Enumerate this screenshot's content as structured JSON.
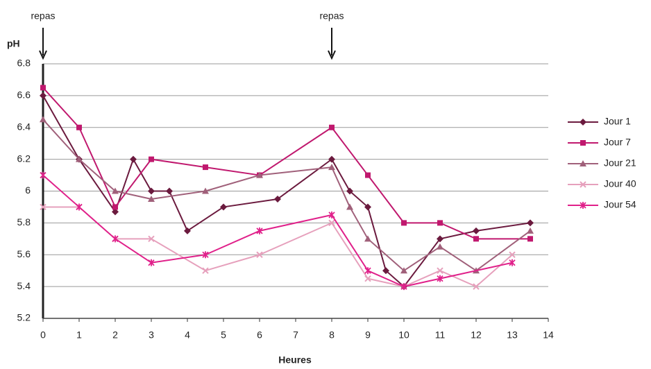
{
  "chart_data": {
    "type": "line",
    "y_label": "pH",
    "x_label": "Heures",
    "xlim": [
      0,
      14
    ],
    "xticks": [
      0,
      1,
      2,
      3,
      4,
      5,
      6,
      7,
      8,
      9,
      10,
      11,
      12,
      13,
      14
    ],
    "ylim": [
      5.2,
      6.8
    ],
    "yticks": [
      5.2,
      5.4,
      5.6,
      5.8,
      6,
      6.2,
      6.4,
      6.6,
      6.8
    ],
    "grid": true,
    "legend": "right",
    "annotations": [
      {
        "text": "repas",
        "x": 0
      },
      {
        "text": "repas",
        "x": 8
      }
    ],
    "series": [
      {
        "name": "Jour 1",
        "color": "#6b1a3e",
        "marker": "diamond",
        "x": [
          0,
          1,
          2,
          2.5,
          3,
          3.5,
          4,
          5,
          6.5,
          8,
          8.5,
          9,
          9.5,
          10,
          11,
          12,
          13.5
        ],
        "values": [
          6.6,
          6.2,
          5.87,
          6.2,
          6.0,
          6.0,
          5.75,
          5.9,
          5.95,
          6.2,
          6.0,
          5.9,
          5.5,
          5.4,
          5.7,
          5.75,
          5.8
        ]
      },
      {
        "name": "Jour 7",
        "color": "#c0186e",
        "marker": "square",
        "x": [
          0,
          1,
          2,
          3,
          4.5,
          6,
          8,
          9,
          10,
          11,
          12,
          13.5
        ],
        "values": [
          6.65,
          6.4,
          5.9,
          6.2,
          6.15,
          6.1,
          6.4,
          6.1,
          5.8,
          5.8,
          5.7,
          5.7
        ]
      },
      {
        "name": "Jour 21",
        "color": "#a0607a",
        "marker": "triangle",
        "x": [
          0,
          1,
          2,
          3,
          4.5,
          6,
          8,
          8.5,
          9,
          10,
          11,
          12,
          13.5
        ],
        "values": [
          6.45,
          6.2,
          6.0,
          5.95,
          6.0,
          6.1,
          6.15,
          5.9,
          5.7,
          5.5,
          5.65,
          5.5,
          5.75
        ]
      },
      {
        "name": "Jour 40",
        "color": "#e6a0bc",
        "marker": "x",
        "x": [
          0,
          1,
          2,
          3,
          4.5,
          6,
          8,
          9,
          10,
          11,
          12,
          13
        ],
        "values": [
          5.9,
          5.9,
          5.7,
          5.7,
          5.5,
          5.6,
          5.8,
          5.45,
          5.4,
          5.5,
          5.4,
          5.6
        ]
      },
      {
        "name": "Jour 54",
        "color": "#e0208a",
        "marker": "star",
        "x": [
          0,
          1,
          2,
          3,
          4.5,
          6,
          8,
          9,
          10,
          11,
          13
        ],
        "values": [
          6.1,
          5.9,
          5.7,
          5.55,
          5.6,
          5.75,
          5.85,
          5.5,
          5.4,
          5.45,
          5.55
        ]
      }
    ]
  }
}
